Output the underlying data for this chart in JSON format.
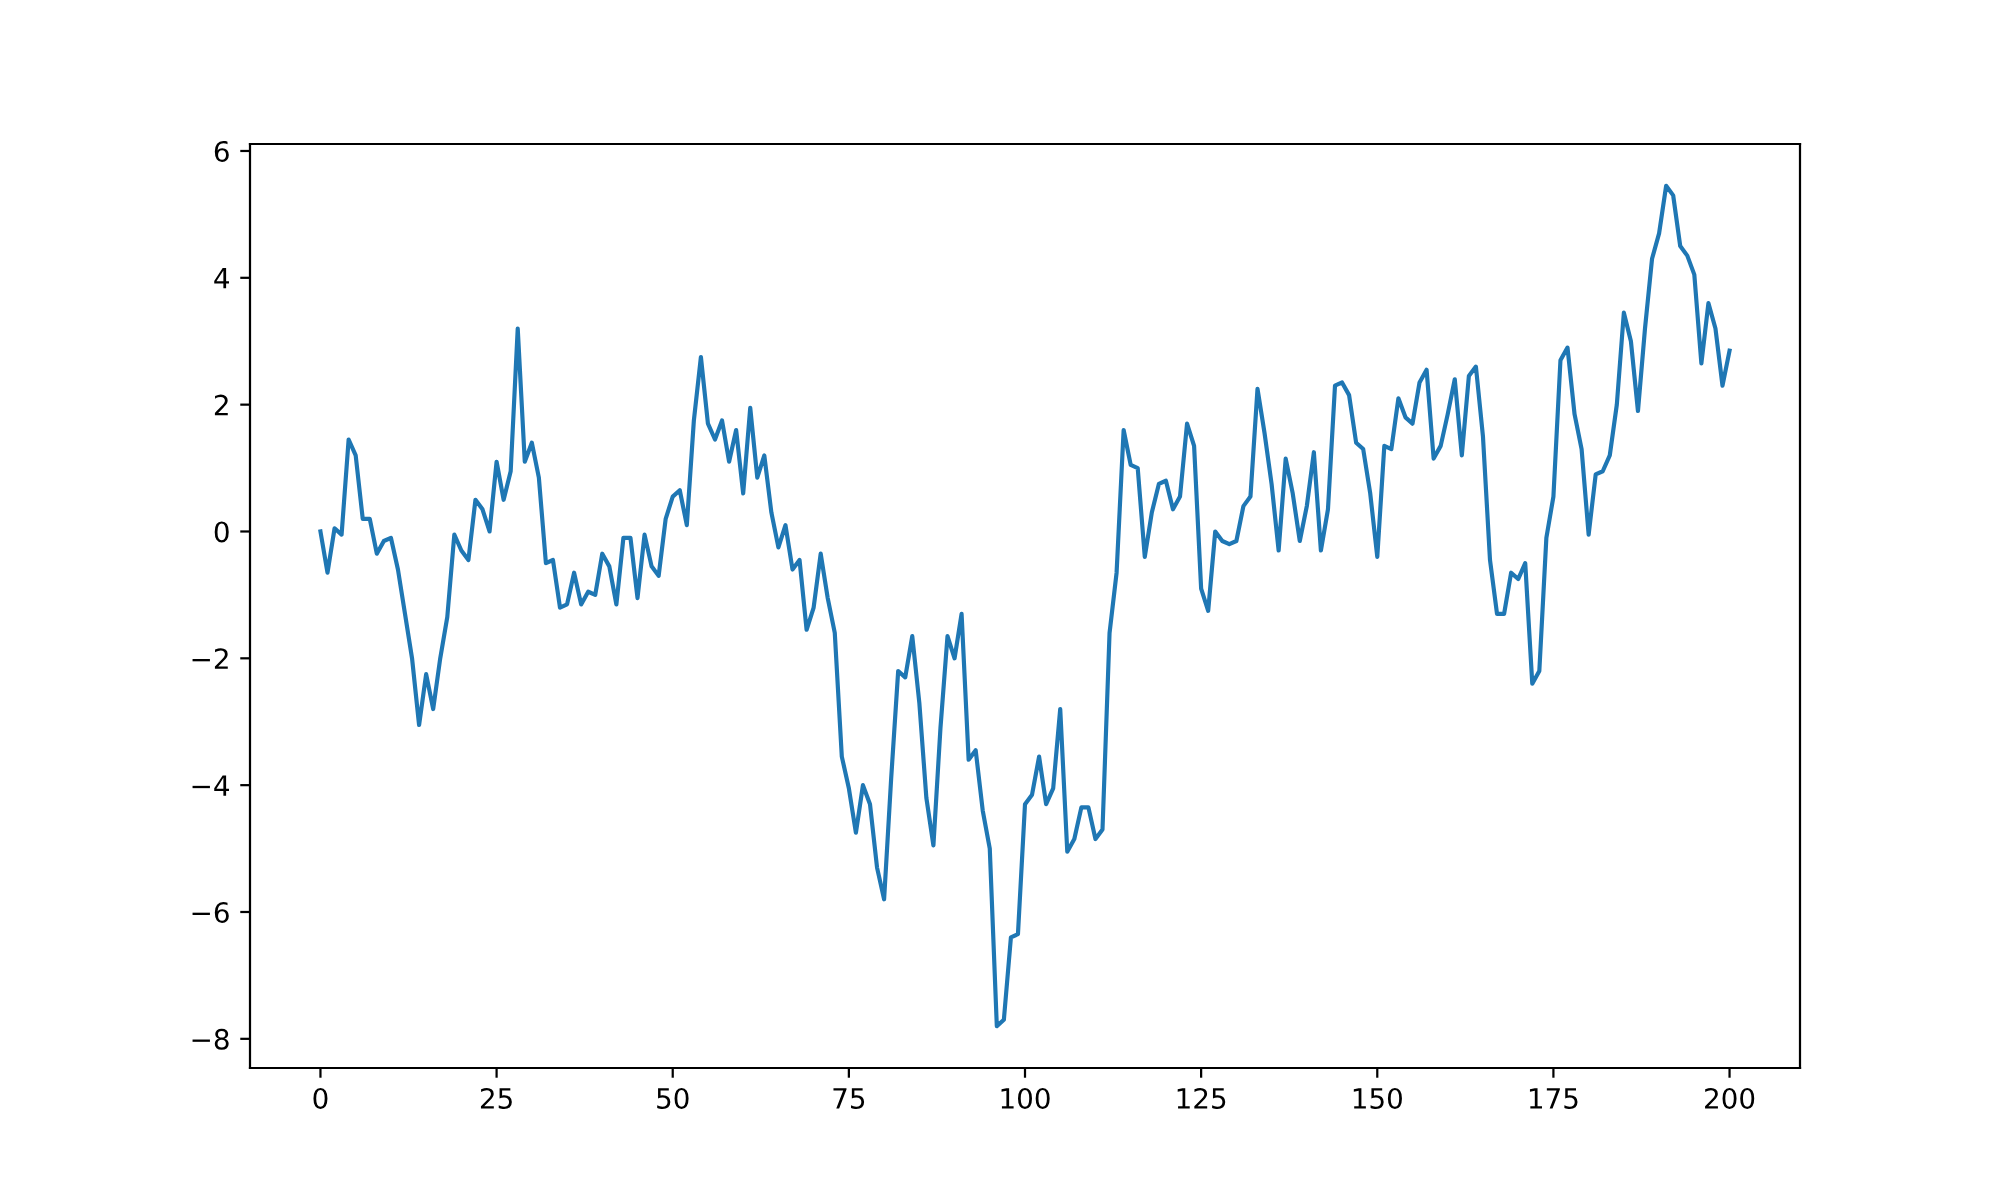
{
  "chart_data": {
    "type": "line",
    "color": "#1f77b4",
    "grid": false,
    "legend": false,
    "marker": "none",
    "line_style": "solid",
    "x": [
      0,
      1,
      2,
      3,
      4,
      5,
      6,
      7,
      8,
      9,
      10,
      11,
      12,
      13,
      14,
      15,
      16,
      17,
      18,
      19,
      20,
      21,
      22,
      23,
      24,
      25,
      26,
      27,
      28,
      29,
      30,
      31,
      32,
      33,
      34,
      35,
      36,
      37,
      38,
      39,
      40,
      41,
      42,
      43,
      44,
      45,
      46,
      47,
      48,
      49,
      50,
      51,
      52,
      53,
      54,
      55,
      56,
      57,
      58,
      59,
      60,
      61,
      62,
      63,
      64,
      65,
      66,
      67,
      68,
      69,
      70,
      71,
      72,
      73,
      74,
      75,
      76,
      77,
      78,
      79,
      80,
      81,
      82,
      83,
      84,
      85,
      86,
      87,
      88,
      89,
      90,
      91,
      92,
      93,
      94,
      95,
      96,
      97,
      98,
      99,
      100,
      101,
      102,
      103,
      104,
      105,
      106,
      107,
      108,
      109,
      110,
      111,
      112,
      113,
      114,
      115,
      116,
      117,
      118,
      119,
      120,
      121,
      122,
      123,
      124,
      125,
      126,
      127,
      128,
      129,
      130,
      131,
      132,
      133,
      134,
      135,
      136,
      137,
      138,
      139,
      140,
      141,
      142,
      143,
      144,
      145,
      146,
      147,
      148,
      149,
      150,
      151,
      152,
      153,
      154,
      155,
      156,
      157,
      158,
      159,
      160,
      161,
      162,
      163,
      164,
      165,
      166,
      167,
      168,
      169,
      170,
      171,
      172,
      173,
      174,
      175,
      176,
      177,
      178,
      179,
      180,
      181,
      182,
      183,
      184,
      185,
      186,
      187,
      188,
      189,
      190,
      191,
      192,
      193,
      194,
      195,
      196,
      197,
      198,
      199,
      200
    ],
    "values": [
      0,
      -0.65,
      0.05,
      -0.05,
      1.45,
      1.2,
      0.2,
      0.2,
      -0.35,
      -0.15,
      -0.1,
      -0.6,
      -1.3,
      -2.0,
      -3.05,
      -2.25,
      -2.8,
      -2.0,
      -1.35,
      -0.05,
      -0.3,
      -0.45,
      0.5,
      0.35,
      0.0,
      1.1,
      0.5,
      0.95,
      3.2,
      1.1,
      1.4,
      0.85,
      -0.5,
      -0.45,
      -1.2,
      -1.15,
      -0.65,
      -1.15,
      -0.95,
      -1.0,
      -0.35,
      -0.55,
      -1.15,
      -0.1,
      -0.1,
      -1.05,
      -0.05,
      -0.55,
      -0.7,
      0.2,
      0.55,
      0.65,
      0.1,
      1.75,
      2.75,
      1.7,
      1.45,
      1.75,
      1.1,
      1.6,
      0.6,
      1.95,
      0.85,
      1.2,
      0.3,
      -0.25,
      0.1,
      -0.6,
      -0.45,
      -1.55,
      -1.2,
      -0.35,
      -1.05,
      -1.6,
      -3.55,
      -4.05,
      -4.75,
      -4.0,
      -4.3,
      -5.3,
      -5.8,
      -3.9,
      -2.2,
      -2.3,
      -1.65,
      -2.7,
      -4.2,
      -4.95,
      -3.1,
      -1.65,
      -2.0,
      -1.3,
      -3.6,
      -3.45,
      -4.4,
      -5.0,
      -7.8,
      -7.7,
      -6.4,
      -6.35,
      -4.3,
      -4.15,
      -3.55,
      -4.3,
      -4.05,
      -2.8,
      -5.05,
      -4.85,
      -4.35,
      -4.35,
      -4.85,
      -4.7,
      -1.6,
      -0.65,
      1.6,
      1.05,
      1.0,
      -0.4,
      0.3,
      0.75,
      0.8,
      0.35,
      0.55,
      1.7,
      1.35,
      -0.9,
      -1.25,
      0.0,
      -0.15,
      -0.2,
      -0.15,
      0.4,
      0.55,
      2.25,
      1.55,
      0.75,
      -0.3,
      1.15,
      0.6,
      -0.15,
      0.4,
      1.25,
      -0.3,
      0.35,
      2.3,
      2.35,
      2.15,
      1.4,
      1.3,
      0.6,
      -0.4,
      1.35,
      1.3,
      2.1,
      1.8,
      1.7,
      2.35,
      2.55,
      1.15,
      1.35,
      1.85,
      2.4,
      1.2,
      2.45,
      2.6,
      1.5,
      -0.45,
      -1.3,
      -1.3,
      -0.65,
      -0.75,
      -0.5,
      -2.4,
      -2.2,
      -0.1,
      0.55,
      2.7,
      2.9,
      1.85,
      1.3,
      -0.05,
      0.9,
      0.95,
      1.2,
      2.0,
      3.45,
      3.0,
      1.9,
      3.2,
      4.3,
      4.7,
      5.45,
      5.3,
      4.5,
      4.35,
      4.05,
      2.65,
      3.6,
      3.2,
      2.3,
      2.85
    ],
    "xlim": [
      -10,
      210
    ],
    "ylim": [
      -8.46,
      6.11
    ],
    "xticks": [
      0,
      25,
      50,
      75,
      100,
      125,
      150,
      175,
      200
    ],
    "yticks": [
      {
        "value": -8,
        "label": "−8"
      },
      {
        "value": -6,
        "label": "−6"
      },
      {
        "value": -4,
        "label": "−4"
      },
      {
        "value": -2,
        "label": "−2"
      },
      0,
      2,
      4,
      6
    ]
  }
}
